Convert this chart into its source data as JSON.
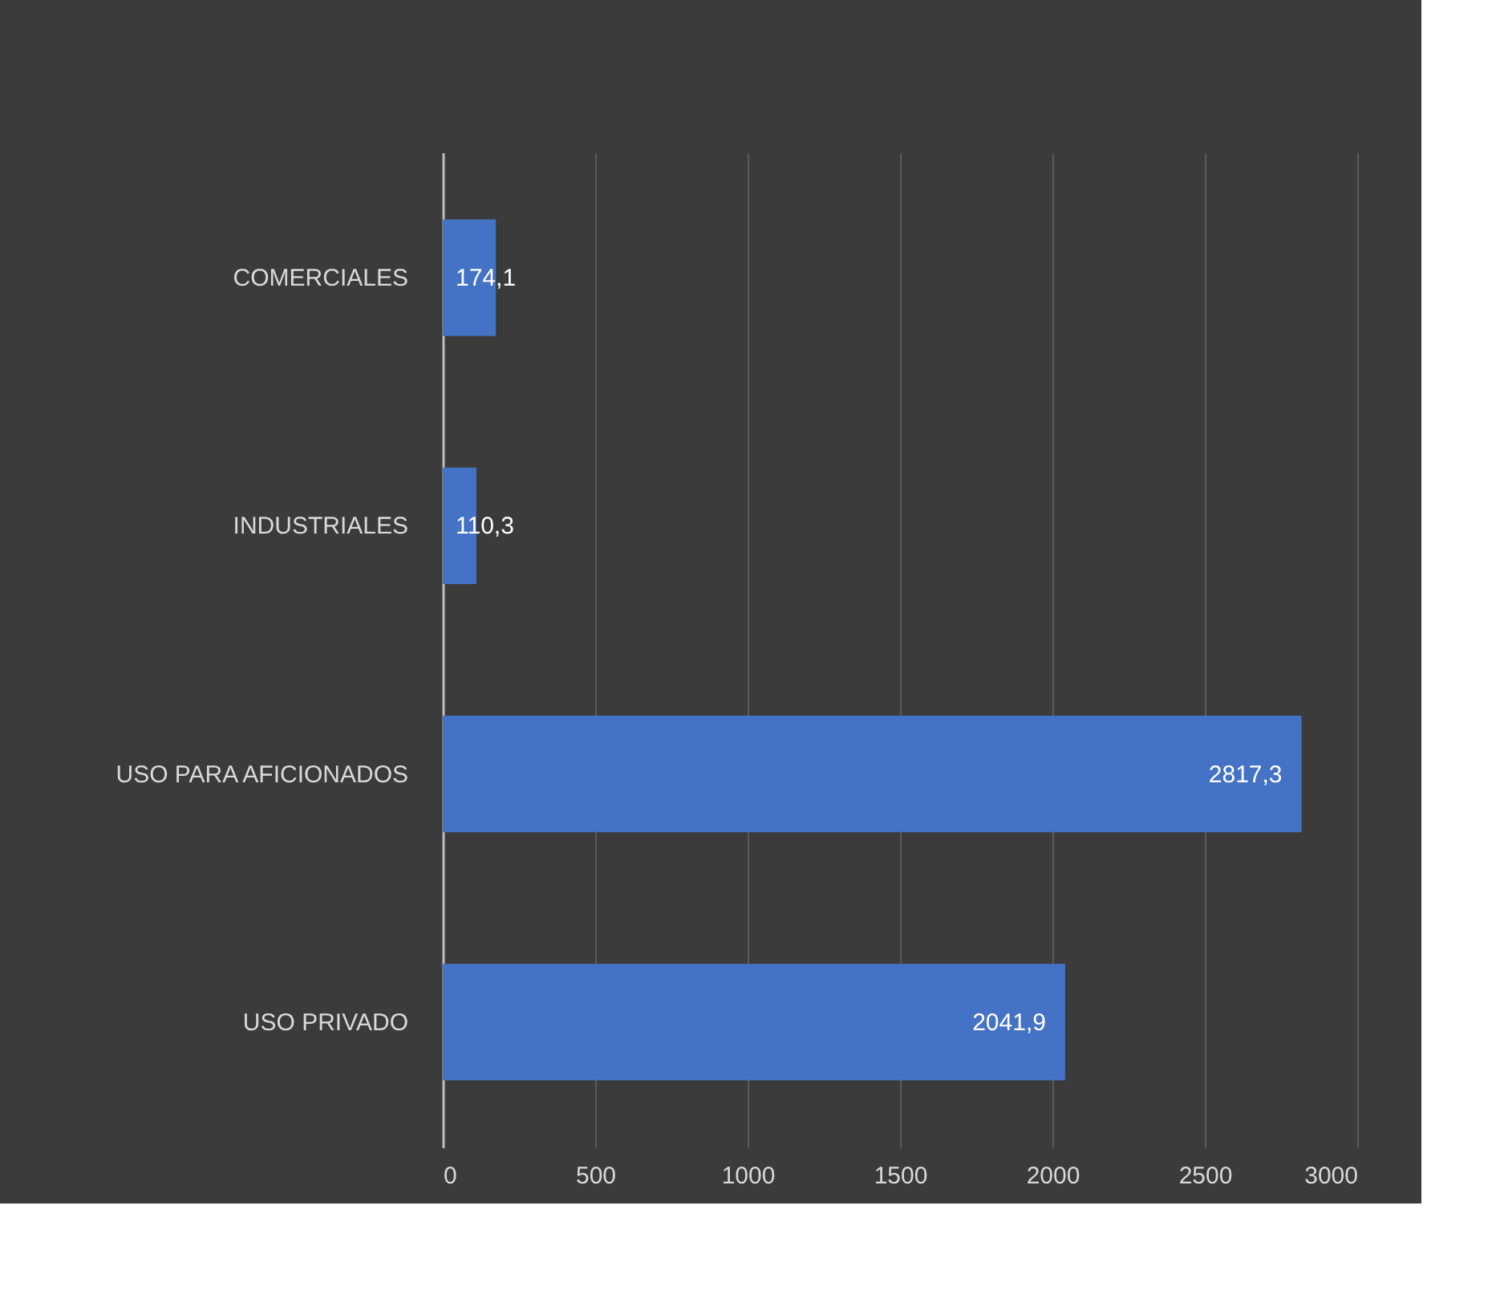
{
  "chart_data": {
    "type": "bar",
    "orientation": "horizontal",
    "categories": [
      "COMERCIALES",
      "INDUSTRIALES",
      "USO PARA AFICIONADOS",
      "USO PRIVADO"
    ],
    "values": [
      174.1,
      110.3,
      2817.3,
      2041.9
    ],
    "value_labels": [
      "174,1",
      "110,3",
      "2817,3",
      "2041,9"
    ],
    "color": "#4472c4",
    "xlim": [
      0,
      3000
    ],
    "xticks": [
      0,
      500,
      1000,
      1500,
      2000,
      2500,
      3000
    ],
    "grid": "x"
  }
}
